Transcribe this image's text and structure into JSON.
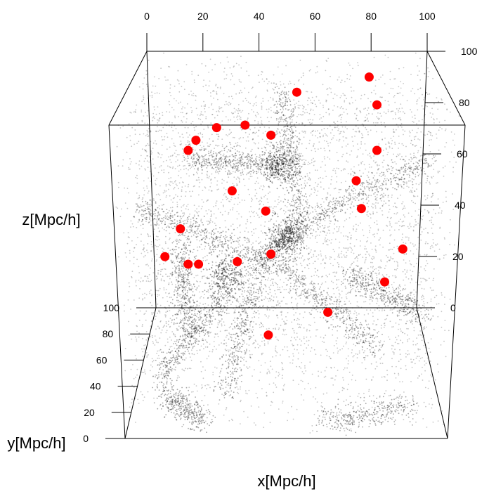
{
  "chart_data": {
    "type": "scatter",
    "projection": "3d-box",
    "xlabel": "x[Mpc/h]",
    "ylabel": "y[Mpc/h]",
    "zlabel": "z[Mpc/h]",
    "xlim": [
      0,
      100
    ],
    "ylim": [
      0,
      100
    ],
    "zlim": [
      0,
      100
    ],
    "x_ticks": [
      "0",
      "20",
      "40",
      "60",
      "80",
      "100"
    ],
    "y_ticks": [
      "0",
      "20",
      "40",
      "60",
      "80",
      "100"
    ],
    "z_ticks": [
      "0",
      "20",
      "40",
      "60",
      "80",
      "100"
    ],
    "grid": false,
    "background_particles": {
      "description": "dense cloud of small grey points tracing a cosmic-web filament network",
      "color": "#000000",
      "opacity": 0.22
    },
    "highlighted_points": {
      "color": "#ff0000",
      "note": "x and z read from the front-face axes; depth (y) not recoverable from projection",
      "points": [
        {
          "x": 10,
          "z": 29
        },
        {
          "x": 4,
          "z": 18
        },
        {
          "x": 13,
          "z": 15
        },
        {
          "x": 17,
          "z": 15
        },
        {
          "x": 32,
          "z": 16
        },
        {
          "x": 45,
          "z": 19
        },
        {
          "x": 43,
          "z": 36
        },
        {
          "x": 30,
          "z": 44
        },
        {
          "x": 13,
          "z": 60
        },
        {
          "x": 16,
          "z": 64
        },
        {
          "x": 24,
          "z": 69
        },
        {
          "x": 35,
          "z": 70
        },
        {
          "x": 45,
          "z": 66
        },
        {
          "x": 55,
          "z": 83
        },
        {
          "x": 83,
          "z": 89
        },
        {
          "x": 86,
          "z": 78
        },
        {
          "x": 86,
          "z": 60
        },
        {
          "x": 78,
          "z": 48
        },
        {
          "x": 80,
          "z": 37
        },
        {
          "x": 96,
          "z": 21
        },
        {
          "x": 89,
          "z": 8
        },
        {
          "x": 67,
          "z": -4
        },
        {
          "x": 44,
          "z": -13
        }
      ]
    }
  }
}
